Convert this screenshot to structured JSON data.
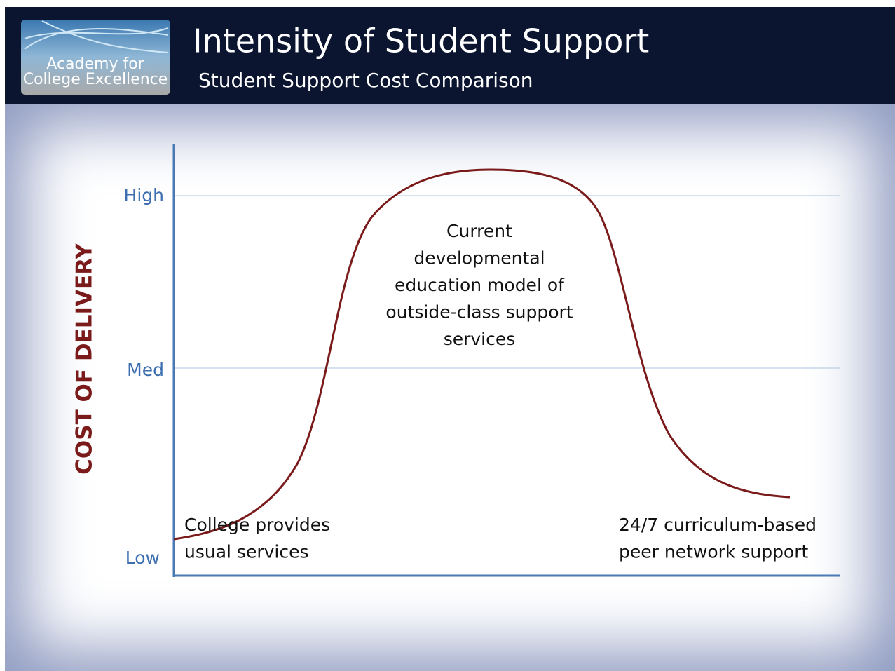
{
  "header": {
    "logo": [
      "Academy for",
      "College Excellence"
    ],
    "title": "Intensity of Student Support",
    "subtitle": "Student Support Cost Comparison"
  },
  "diagram": {
    "y_axis_label": "COST OF DELIVERY",
    "levels": [
      "High",
      "Med",
      "Low"
    ],
    "annotations": {
      "left": [
        "College provides",
        "usual services"
      ],
      "center": [
        "Current",
        "developmental",
        "education model of",
        "outside-class support",
        "services"
      ],
      "right": [
        "24/7 curriculum-based",
        "peer network support"
      ]
    }
  }
}
